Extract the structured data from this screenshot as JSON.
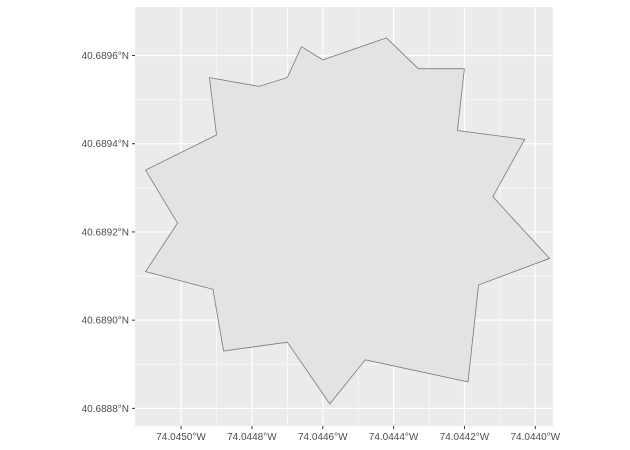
{
  "map": {
    "panel_background": "#ebebeb",
    "grid_color": "#ffffff",
    "polygon_fill": "#e3e3e3",
    "polygon_stroke": "#7a7a7a",
    "axis": {
      "x_ticks": [
        {
          "value": -74.045,
          "label": "74.0450°W"
        },
        {
          "value": -74.0448,
          "label": "74.0448°W"
        },
        {
          "value": -74.0446,
          "label": "74.0446°W"
        },
        {
          "value": -74.0444,
          "label": "74.0444°W"
        },
        {
          "value": -74.0442,
          "label": "74.0442°W"
        },
        {
          "value": -74.044,
          "label": "74.0440°W"
        }
      ],
      "y_ticks": [
        {
          "value": 40.6888,
          "label": "40.6888°N"
        },
        {
          "value": 40.689,
          "label": "40.6890°N"
        },
        {
          "value": 40.6892,
          "label": "40.6892°N"
        },
        {
          "value": 40.6894,
          "label": "40.6894°N"
        },
        {
          "value": 40.6896,
          "label": "40.6896°N"
        }
      ],
      "x_range": [
        -74.04513,
        -74.04395
      ],
      "y_range": [
        40.68876,
        40.68971
      ]
    },
    "shape": {
      "type": "polygon",
      "coordinates": [
        [
          -74.04466,
          40.68962
        ],
        [
          -74.0446,
          40.68959
        ],
        [
          -74.04442,
          40.68964
        ],
        [
          -74.04433,
          40.68957
        ],
        [
          -74.0442,
          40.68957
        ],
        [
          -74.04422,
          40.68943
        ],
        [
          -74.04403,
          40.68941
        ],
        [
          -74.04412,
          40.68928
        ],
        [
          -74.04396,
          40.68914
        ],
        [
          -74.04416,
          40.68908
        ],
        [
          -74.04419,
          40.68886
        ],
        [
          -74.04448,
          40.68891
        ],
        [
          -74.04458,
          40.68881
        ],
        [
          -74.0447,
          40.68895
        ],
        [
          -74.04488,
          40.68893
        ],
        [
          -74.04491,
          40.68907
        ],
        [
          -74.0451,
          40.68911
        ],
        [
          -74.04501,
          40.68922
        ],
        [
          -74.0451,
          40.68934
        ],
        [
          -74.0449,
          40.68942
        ],
        [
          -74.04492,
          40.68955
        ],
        [
          -74.04478,
          40.68953
        ],
        [
          -74.0447,
          40.68955
        ]
      ]
    }
  }
}
